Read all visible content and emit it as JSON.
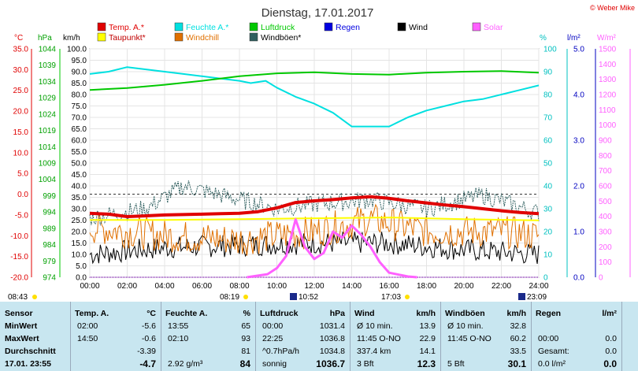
{
  "header": {
    "title": "Dienstag, 17.01.2017",
    "copyright": "© Weber Mike"
  },
  "legend": [
    {
      "label": "Temp. A.*",
      "color": "#e00000"
    },
    {
      "label": "Feuchte A.*",
      "color": "#00e0e0"
    },
    {
      "label": "Luftdruck",
      "color": "#00c800"
    },
    {
      "label": "Regen",
      "color": "#0000e0"
    },
    {
      "label": "Wind",
      "color": "#000000"
    },
    {
      "label": "Solar",
      "color": "#ff60ff"
    },
    {
      "label": "Taupunkt*",
      "color": "#ffff00"
    },
    {
      "label": "Windchill",
      "color": "#e07000"
    },
    {
      "label": "Windböen*",
      "color": "#2f5f5f"
    }
  ],
  "axis_units": {
    "temp": "°C",
    "pressure": "hPa",
    "wind": "km/h",
    "humidity": "%",
    "rain": "l/m²",
    "solar": "W/m²"
  },
  "markers": {
    "bottom_left": "08:43",
    "sunrise": "08:19",
    "moon1": "10:52",
    "sunset": "17:03",
    "moon2": "23:09"
  },
  "chart_data": {
    "type": "line",
    "x_ticks": [
      "00:00",
      "02:00",
      "04:00",
      "06:00",
      "08:00",
      "10:00",
      "12:00",
      "14:00",
      "16:00",
      "18:00",
      "20:00",
      "22:00",
      "24:00"
    ],
    "axes": {
      "temp": {
        "range": [
          -20,
          35
        ],
        "ticks": [
          "35.0",
          "30.0",
          "25.0",
          "20.0",
          "15.0",
          "10.0",
          "5.0",
          "0.0",
          "-5.0",
          "-10.0",
          "-15.0",
          "-20.0"
        ]
      },
      "pressure": {
        "range": [
          974,
          1044
        ],
        "ticks": [
          "1044",
          "1039",
          "1034",
          "1029",
          "1024",
          "1019",
          "1014",
          "1009",
          "1004",
          "999",
          "994",
          "989",
          "984",
          "979",
          "974"
        ]
      },
      "wind": {
        "range": [
          0,
          100
        ],
        "ticks": [
          "100.0",
          "95.0",
          "90.0",
          "85.0",
          "80.0",
          "75.0",
          "70.0",
          "65.0",
          "60.0",
          "55.0",
          "50.0",
          "45.0",
          "40.0",
          "35.0",
          "30.0",
          "25.0",
          "20.0",
          "15.0",
          "10.0",
          "5.0",
          "0.0"
        ]
      },
      "humidity": {
        "range": [
          0,
          100
        ],
        "ticks": [
          "100",
          "90",
          "80",
          "70",
          "60",
          "50",
          "40",
          "30",
          "20",
          "10",
          "0"
        ]
      },
      "rain": {
        "range": [
          0,
          5
        ],
        "ticks": [
          "5.0",
          "4.0",
          "3.0",
          "2.0",
          "1.0",
          "0.0"
        ]
      },
      "solar": {
        "range": [
          0,
          1500
        ],
        "ticks": [
          "1500",
          "1400",
          "1300",
          "1200",
          "1100",
          "1000",
          "900",
          "800",
          "700",
          "600",
          "500",
          "400",
          "300",
          "200",
          "100",
          "0"
        ]
      }
    },
    "series": [
      {
        "name": "Temp. A.",
        "axis": "temp",
        "color": "#e00000",
        "points": [
          [
            0,
            -4.6
          ],
          [
            1,
            -4.8
          ],
          [
            2,
            -5.4
          ],
          [
            3,
            -5.2
          ],
          [
            4,
            -5.0
          ],
          [
            5,
            -4.9
          ],
          [
            6,
            -4.8
          ],
          [
            7,
            -4.7
          ],
          [
            8,
            -4.6
          ],
          [
            9,
            -4.2
          ],
          [
            10,
            -3.3
          ],
          [
            11,
            -2.0
          ],
          [
            12,
            -1.6
          ],
          [
            13,
            -1.3
          ],
          [
            14,
            -0.9
          ],
          [
            15,
            -0.6
          ],
          [
            16,
            -1.0
          ],
          [
            17,
            -1.6
          ],
          [
            18,
            -2.1
          ],
          [
            19,
            -2.6
          ],
          [
            20,
            -3.0
          ],
          [
            21,
            -3.5
          ],
          [
            22,
            -4.0
          ],
          [
            23,
            -4.4
          ],
          [
            24,
            -4.7
          ]
        ]
      },
      {
        "name": "Feuchte A.",
        "axis": "humidity",
        "color": "#00e0e0",
        "points": [
          [
            0,
            89
          ],
          [
            1,
            90
          ],
          [
            2,
            92
          ],
          [
            3,
            91
          ],
          [
            4,
            90
          ],
          [
            5,
            89
          ],
          [
            6,
            88
          ],
          [
            7,
            87
          ],
          [
            8,
            86
          ],
          [
            8.6,
            85
          ],
          [
            9.4,
            86
          ],
          [
            10,
            83
          ],
          [
            11,
            79
          ],
          [
            12,
            76
          ],
          [
            13,
            72
          ],
          [
            14,
            66
          ],
          [
            15,
            66
          ],
          [
            16,
            66
          ],
          [
            17,
            70
          ],
          [
            18,
            73
          ],
          [
            19,
            75
          ],
          [
            20,
            77
          ],
          [
            21,
            78
          ],
          [
            22,
            80
          ],
          [
            23,
            82
          ],
          [
            24,
            84
          ]
        ]
      },
      {
        "name": "Luftdruck",
        "axis": "pressure",
        "color": "#00c800",
        "points": [
          [
            0,
            1031.4
          ],
          [
            2,
            1032.0
          ],
          [
            4,
            1033.0
          ],
          [
            6,
            1034.2
          ],
          [
            8,
            1035.6
          ],
          [
            10,
            1036.5
          ],
          [
            12,
            1036.8
          ],
          [
            14,
            1036.3
          ],
          [
            16,
            1036.1
          ],
          [
            18,
            1036.7
          ],
          [
            20,
            1037.0
          ],
          [
            22,
            1037.2
          ],
          [
            24,
            1036.7
          ]
        ]
      },
      {
        "name": "Taupunkt",
        "axis": "temp",
        "color": "#ffff00",
        "points": [
          [
            0,
            -6.2
          ],
          [
            4,
            -6.2
          ],
          [
            8,
            -6.0
          ],
          [
            12,
            -5.8
          ],
          [
            16,
            -5.6
          ],
          [
            20,
            -6.0
          ],
          [
            24,
            -6.3
          ]
        ]
      },
      {
        "name": "Solar",
        "axis": "solar",
        "color": "#ff60ff",
        "points": [
          [
            8.4,
            0
          ],
          [
            9.5,
            20
          ],
          [
            10,
            60
          ],
          [
            10.5,
            140
          ],
          [
            11,
            380
          ],
          [
            11.5,
            200
          ],
          [
            12,
            120
          ],
          [
            12.5,
            160
          ],
          [
            13,
            300
          ],
          [
            13.5,
            260
          ],
          [
            14,
            340
          ],
          [
            14.5,
            280
          ],
          [
            15,
            200
          ],
          [
            15.5,
            100
          ],
          [
            16,
            30
          ],
          [
            17,
            5
          ],
          [
            17.5,
            0
          ]
        ]
      }
    ],
    "noisy_series": [
      {
        "name": "Wind",
        "axis": "wind",
        "color": "#000000",
        "profile": [
          [
            0,
            10
          ],
          [
            4,
            13
          ],
          [
            8,
            14
          ],
          [
            12,
            15
          ],
          [
            16,
            15
          ],
          [
            20,
            12
          ],
          [
            24,
            10
          ]
        ],
        "amplitude": 5
      },
      {
        "name": "Windchill",
        "axis": "temp",
        "color": "#e07000",
        "profile": [
          [
            0,
            -8
          ],
          [
            4,
            -10
          ],
          [
            8,
            -11
          ],
          [
            12,
            -9
          ],
          [
            15,
            -6
          ],
          [
            18,
            -9
          ],
          [
            22,
            -9
          ],
          [
            24,
            -10
          ]
        ],
        "amplitude": 4
      },
      {
        "name": "Windböen",
        "axis": "wind",
        "color": "#2f5f5f",
        "profile": [
          [
            0,
            26
          ],
          [
            3,
            30
          ],
          [
            5,
            40
          ],
          [
            8,
            34
          ],
          [
            10,
            30
          ],
          [
            12,
            32
          ],
          [
            15,
            34
          ],
          [
            18,
            30
          ],
          [
            21,
            36
          ],
          [
            24,
            28
          ]
        ],
        "amplitude": 4
      }
    ]
  },
  "summary": {
    "row_labels": [
      "Sensor",
      "MinWert",
      "MaxWert",
      "Durchschnitt",
      "17.01. 23:55"
    ],
    "columns": [
      {
        "header": "Temp. A.",
        "unit": "°C",
        "rows": [
          [
            "02:00",
            "-5.6"
          ],
          [
            "14:50",
            "-0.6"
          ],
          [
            "",
            "-3.39"
          ],
          [
            "",
            "-4.7"
          ]
        ]
      },
      {
        "header": "Feuchte A.",
        "unit": "%",
        "rows": [
          [
            "13:55",
            "65"
          ],
          [
            "02:10",
            "93"
          ],
          [
            "",
            "81"
          ],
          [
            "2.92 g/m³",
            "84"
          ]
        ]
      },
      {
        "header": "Luftdruck",
        "unit": "hPa",
        "rows": [
          [
            "00:00",
            "1031.4"
          ],
          [
            "22:25",
            "1036.8"
          ],
          [
            "^0.7hPa/h",
            "1034.8"
          ],
          [
            "sonnig",
            "1036.7"
          ]
        ]
      },
      {
        "header": "Wind",
        "unit": "km/h",
        "rows": [
          [
            "Ø 10 min.",
            "13.9"
          ],
          [
            "11:45      O-NO",
            "22.9"
          ],
          [
            "337.4 km",
            "14.1"
          ],
          [
            "3 Bft",
            "12.3"
          ]
        ]
      },
      {
        "header": "Windböen",
        "unit": "km/h",
        "rows": [
          [
            "Ø 10 min.",
            "32.8"
          ],
          [
            "11:45      O-NO",
            "60.2"
          ],
          [
            "",
            "33.5"
          ],
          [
            "5 Bft",
            "30.1"
          ]
        ]
      },
      {
        "header": "Regen",
        "unit": "l/m²",
        "rows": [
          [
            "",
            ""
          ],
          [
            "00:00",
            "0.0"
          ],
          [
            "Gesamt:",
            "0.0"
          ],
          [
            "0.0 l/m²",
            "0.0"
          ]
        ]
      }
    ]
  }
}
